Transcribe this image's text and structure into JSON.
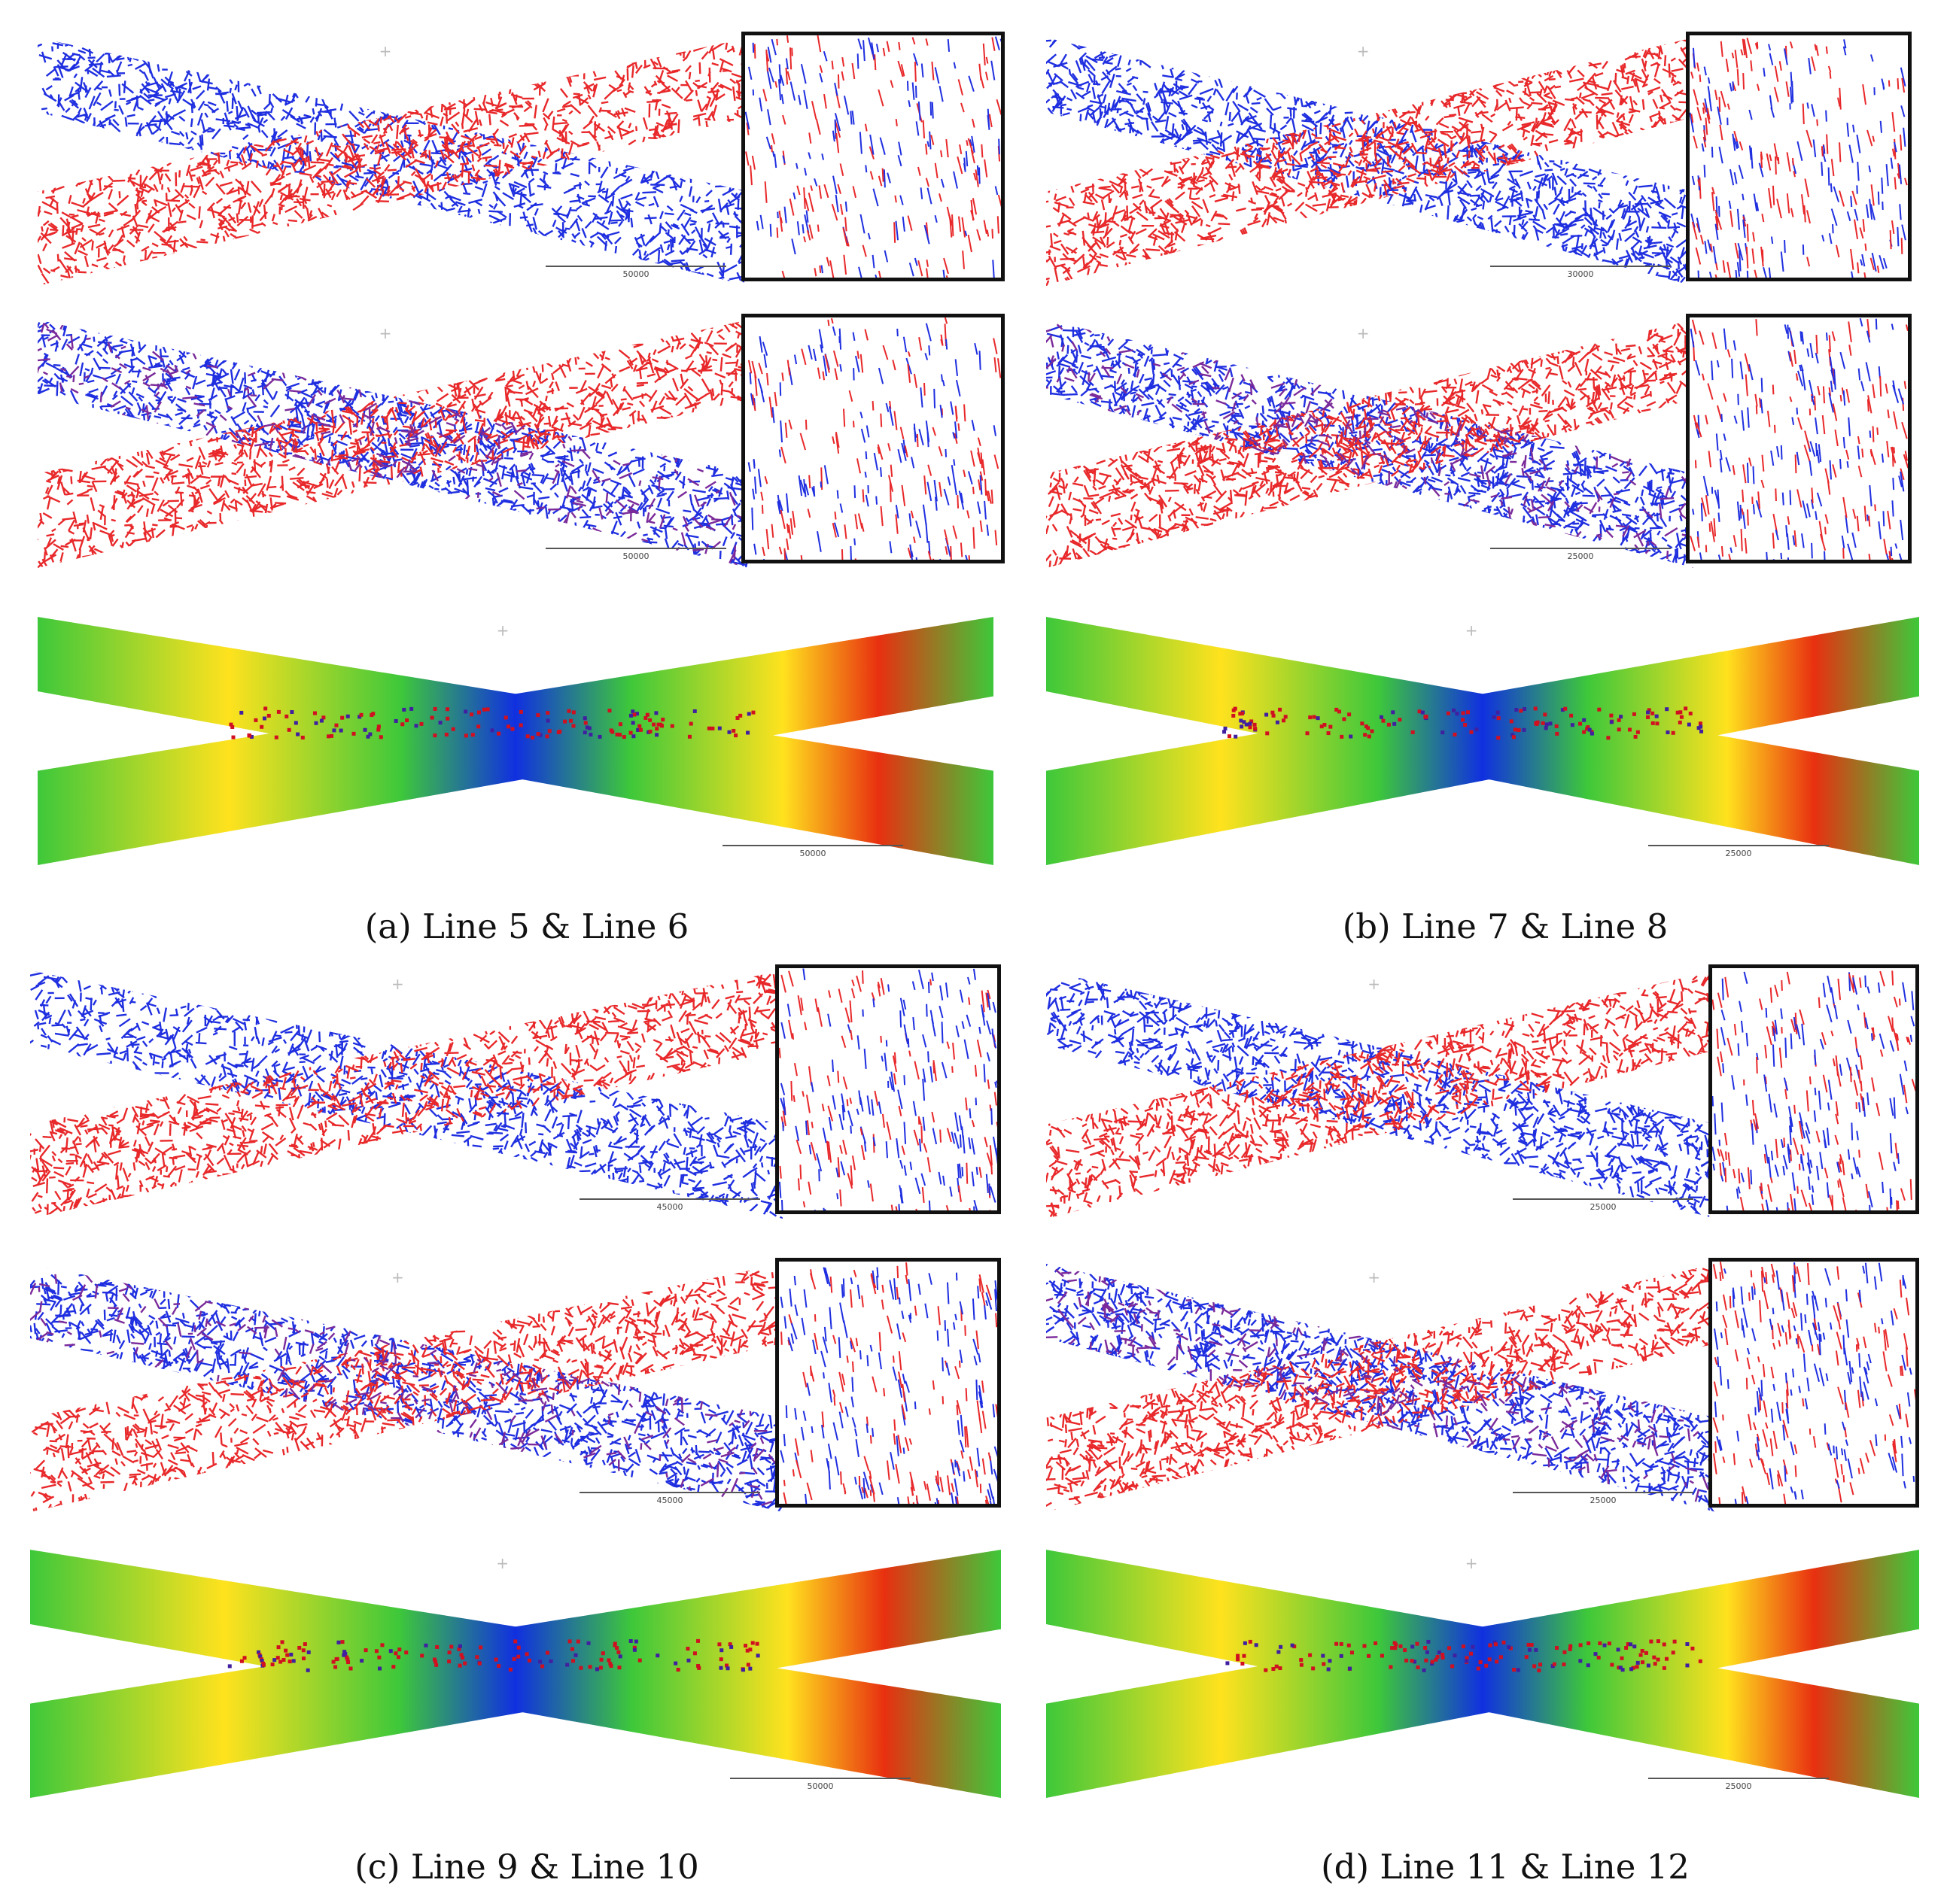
{
  "panels": [
    {
      "caption": "(a) Line 5 & Line 6",
      "scales": [
        "50000",
        "50000",
        "50000"
      ]
    },
    {
      "caption": "(b) Line 7 & Line 8",
      "scales": [
        "30000",
        "25000",
        "25000"
      ]
    },
    {
      "caption": "(c) Line 9 & Line 10",
      "scales": [
        "45000",
        "45000",
        "50000"
      ]
    },
    {
      "caption": "(d) Line 11 & Line 12",
      "scales": [
        "25000",
        "25000",
        "25000"
      ]
    }
  ],
  "colors": {
    "strip_a": "#1f2fe0",
    "strip_b": "#e8282a",
    "overlap": "#7a2a9a",
    "dem_low": "#1030e0",
    "dem_mid": "#3ec83a",
    "dem_high": "#ffe21e",
    "dem_top": "#e83010"
  }
}
